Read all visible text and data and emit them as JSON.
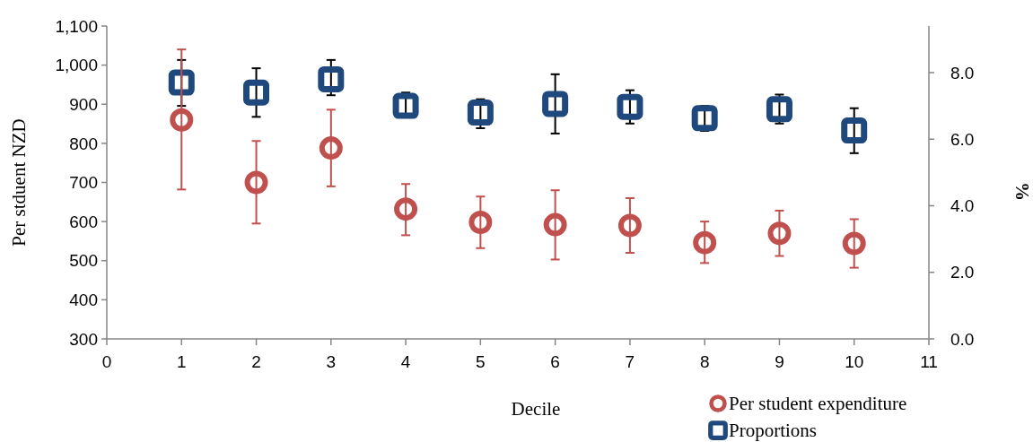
{
  "chart_data": {
    "type": "scatter",
    "xlabel": "Decile",
    "ylabel": "Per stduent NZD",
    "y2label": "%",
    "x": [
      1,
      2,
      3,
      4,
      5,
      6,
      7,
      8,
      9,
      10
    ],
    "xlim": [
      0,
      11
    ],
    "xticks": [
      0,
      1,
      2,
      3,
      4,
      5,
      6,
      7,
      8,
      9,
      10,
      11
    ],
    "ylim": [
      300,
      1100
    ],
    "yticks": [
      300,
      400,
      500,
      600,
      700,
      800,
      900,
      {
        "value": 1000,
        "label": "1,000"
      },
      {
        "value": 1100,
        "label": "1,100"
      }
    ],
    "y2lim": [
      0,
      9.4
    ],
    "y2ticks": [
      {
        "value": 0,
        "label": "0.0"
      },
      {
        "value": 2,
        "label": "2.0"
      },
      {
        "value": 4,
        "label": "4.0"
      },
      {
        "value": 6,
        "label": "6.0"
      },
      {
        "value": 8,
        "label": "8.0"
      }
    ],
    "legend": "bottom right",
    "grid": false,
    "series": [
      {
        "name": "Per student expenditure",
        "color": "#c0504d",
        "marker": "circle",
        "values": [
          860,
          700,
          788,
          632,
          598,
          592,
          590,
          546,
          570,
          544
        ],
        "errors": [
          [
            682,
            1040
          ],
          [
            595,
            806
          ],
          [
            690,
            886
          ],
          [
            565,
            696
          ],
          [
            532,
            664
          ],
          [
            503,
            680
          ],
          [
            520,
            660
          ],
          [
            494,
            600
          ],
          [
            512,
            628
          ],
          [
            482,
            606
          ]
        ]
      },
      {
        "name": "Proportions",
        "color": "#1f497d",
        "marker": "square",
        "axis": "y2",
        "values": [
          7.7,
          7.4,
          7.8,
          7.0,
          6.8,
          7.06,
          6.97,
          6.63,
          6.9,
          6.26
        ],
        "errors": [
          [
            7.0,
            8.38
          ],
          [
            6.67,
            8.13
          ],
          [
            7.32,
            8.38
          ],
          [
            6.66,
            7.4
          ],
          [
            6.33,
            7.2
          ],
          [
            6.17,
            7.95
          ],
          [
            6.47,
            7.47
          ],
          [
            6.25,
            7.0
          ],
          [
            6.47,
            7.34
          ],
          [
            5.58,
            6.93
          ]
        ]
      }
    ]
  }
}
